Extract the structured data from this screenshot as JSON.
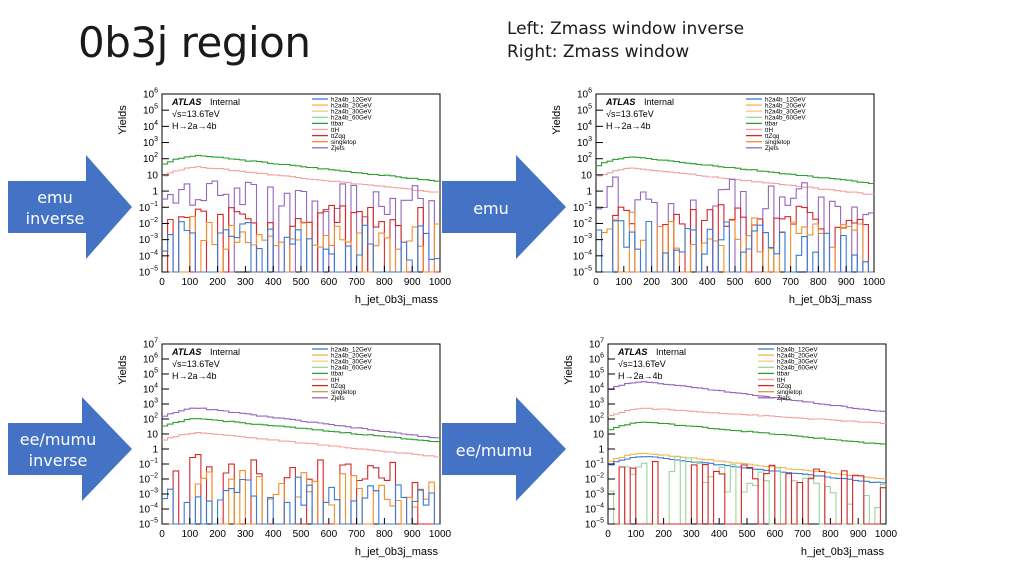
{
  "slide": {
    "title": "0b3j region",
    "note_line1": "Left: Zmass window inverse",
    "note_line2": "Right: Zmass window"
  },
  "arrows": [
    {
      "line1": "emu",
      "line2": "inverse",
      "color": "#4472c4"
    },
    {
      "line1": "emu",
      "line2": "",
      "color": "#4472c4"
    },
    {
      "line1": "ee/mumu",
      "line2": "inverse",
      "color": "#4472c4"
    },
    {
      "line1": "ee/mumu",
      "line2": "",
      "color": "#4472c4"
    }
  ],
  "legend_entries": [
    {
      "name": "h2a4b_12GeV",
      "color": "#3a7bd5"
    },
    {
      "name": "h2a4b_20GeV",
      "color": "#f2b24c"
    },
    {
      "name": "h2a4b_30GeV",
      "color": "#f6c98a"
    },
    {
      "name": "h2a4b_60GeV",
      "color": "#9ad59a"
    },
    {
      "name": "ttbar",
      "color": "#2ca02c"
    },
    {
      "name": "ttH",
      "color": "#f4a0a0"
    },
    {
      "name": "ttZqq",
      "color": "#d62728"
    },
    {
      "name": "singletop",
      "color": "#f28e2b"
    },
    {
      "name": "Zjets",
      "color": "#9467bd"
    }
  ],
  "chart_data": [
    {
      "type": "line",
      "panel": "emu inverse",
      "atlas": "ATLAS",
      "atlas_tag": "Internal",
      "energy": "√s=13.6TeV",
      "process": "H→2a→4b",
      "xlabel": "h_jet_0b3j_mass",
      "ylabel": "Yields",
      "log_y": true,
      "xlim": [
        0,
        1000
      ],
      "ylim": [
        1e-05,
        1000000.0
      ],
      "xticks": [
        "0",
        "100",
        "200",
        "300",
        "400",
        "500",
        "600",
        "700",
        "800",
        "900",
        "1000"
      ],
      "yticks": [
        {
          "b": "10",
          "e": "6",
          "exp": 6
        },
        {
          "b": "10",
          "e": "5",
          "exp": 5
        },
        {
          "b": "10",
          "e": "4",
          "exp": 4
        },
        {
          "b": "10",
          "e": "3",
          "exp": 3
        },
        {
          "b": "10",
          "e": "2",
          "exp": 2
        },
        {
          "b": "10",
          "e": "",
          "exp": 1
        },
        {
          "b": "1",
          "e": "",
          "exp": 0
        },
        {
          "b": "10",
          "e": "−1",
          "exp": -1
        },
        {
          "b": "10",
          "e": "−2",
          "exp": -2
        },
        {
          "b": "10",
          "e": "−3",
          "exp": -3
        },
        {
          "b": "10",
          "e": "−4",
          "exp": -4
        },
        {
          "b": "10",
          "e": "−5",
          "exp": -5
        }
      ],
      "series": [
        {
          "name": "ttbar",
          "color": "#2ca02c",
          "peak": 150,
          "end": 4,
          "kind": "smooth"
        },
        {
          "name": "ttH",
          "color": "#f4a0a0",
          "peak": 30,
          "end": 0.8,
          "kind": "smooth"
        },
        {
          "name": "Zjets",
          "color": "#9467bd",
          "peak": 0.5,
          "end": 0.2,
          "kind": "noisy",
          "low": 1e-05
        },
        {
          "name": "ttZqq",
          "color": "#d62728",
          "peak": 0.02,
          "end": 0.01,
          "kind": "spiky"
        },
        {
          "name": "singletop",
          "color": "#f28e2b",
          "peak": 0.003,
          "end": 0.001,
          "kind": "noisy",
          "low": 1e-05
        },
        {
          "name": "h2a4b_12GeV",
          "color": "#3a7bd5",
          "peak": 0.002,
          "end": 0.0005,
          "kind": "noisy",
          "low": 1e-05
        }
      ]
    },
    {
      "type": "line",
      "panel": "emu",
      "atlas": "ATLAS",
      "atlas_tag": "Internal",
      "energy": "√s=13.6TeV",
      "process": "H→2a→4b",
      "xlabel": "h_jet_0b3j_mass",
      "ylabel": "Yields",
      "log_y": true,
      "xlim": [
        0,
        1000
      ],
      "ylim": [
        1e-05,
        1000000.0
      ],
      "xticks": [
        "0",
        "100",
        "200",
        "300",
        "400",
        "500",
        "600",
        "700",
        "800",
        "900",
        "1000"
      ],
      "yticks": [
        {
          "b": "10",
          "e": "6",
          "exp": 6
        },
        {
          "b": "10",
          "e": "5",
          "exp": 5
        },
        {
          "b": "10",
          "e": "4",
          "exp": 4
        },
        {
          "b": "10",
          "e": "3",
          "exp": 3
        },
        {
          "b": "10",
          "e": "2",
          "exp": 2
        },
        {
          "b": "10",
          "e": "",
          "exp": 1
        },
        {
          "b": "1",
          "e": "",
          "exp": 0
        },
        {
          "b": "10",
          "e": "−1",
          "exp": -1
        },
        {
          "b": "10",
          "e": "−2",
          "exp": -2
        },
        {
          "b": "10",
          "e": "−3",
          "exp": -3
        },
        {
          "b": "10",
          "e": "−4",
          "exp": -4
        },
        {
          "b": "10",
          "e": "−5",
          "exp": -5
        }
      ],
      "series": [
        {
          "name": "ttbar",
          "color": "#2ca02c",
          "peak": 120,
          "end": 3,
          "kind": "smooth"
        },
        {
          "name": "ttH",
          "color": "#f4a0a0",
          "peak": 25,
          "end": 0.6,
          "kind": "smooth"
        },
        {
          "name": "Zjets",
          "color": "#9467bd",
          "peak": 1,
          "end": 0.3,
          "kind": "noisy",
          "low": 1e-05
        },
        {
          "name": "ttZqq",
          "color": "#d62728",
          "peak": 0.02,
          "end": 0.01,
          "kind": "spiky"
        },
        {
          "name": "singletop",
          "color": "#f28e2b",
          "peak": 0.004,
          "end": 0.001,
          "kind": "noisy",
          "low": 1e-05
        },
        {
          "name": "h2a4b_12GeV",
          "color": "#3a7bd5",
          "peak": 0.002,
          "end": 0.0005,
          "kind": "noisy",
          "low": 1e-05
        }
      ]
    },
    {
      "type": "line",
      "panel": "ee/mumu inverse",
      "atlas": "ATLAS",
      "atlas_tag": "Internal",
      "energy": "√s=13.6TeV",
      "process": "H→2a→4b",
      "xlabel": "h_jet_0b3j_mass",
      "ylabel": "Yields",
      "log_y": true,
      "xlim": [
        0,
        1000
      ],
      "ylim": [
        1e-05,
        10000000.0
      ],
      "xticks": [
        "0",
        "100",
        "200",
        "300",
        "400",
        "500",
        "600",
        "700",
        "800",
        "900",
        "1000"
      ],
      "yticks": [
        {
          "b": "10",
          "e": "7",
          "exp": 7
        },
        {
          "b": "10",
          "e": "6",
          "exp": 6
        },
        {
          "b": "10",
          "e": "5",
          "exp": 5
        },
        {
          "b": "10",
          "e": "4",
          "exp": 4
        },
        {
          "b": "10",
          "e": "3",
          "exp": 3
        },
        {
          "b": "10",
          "e": "2",
          "exp": 2
        },
        {
          "b": "10",
          "e": "",
          "exp": 1
        },
        {
          "b": "1",
          "e": "",
          "exp": 0
        },
        {
          "b": "10",
          "e": "−1",
          "exp": -1
        },
        {
          "b": "10",
          "e": "−2",
          "exp": -2
        },
        {
          "b": "10",
          "e": "−3",
          "exp": -3
        },
        {
          "b": "10",
          "e": "−4",
          "exp": -4
        },
        {
          "b": "10",
          "e": "−5",
          "exp": -5
        }
      ],
      "series": [
        {
          "name": "Zjets",
          "color": "#9467bd",
          "peak": 500,
          "end": 5,
          "kind": "smooth"
        },
        {
          "name": "ttbar",
          "color": "#2ca02c",
          "peak": 100,
          "end": 3,
          "kind": "smooth"
        },
        {
          "name": "ttH",
          "color": "#f4a0a0",
          "peak": 12,
          "end": 0.3,
          "kind": "smooth"
        },
        {
          "name": "ttZqq",
          "color": "#d62728",
          "peak": 0.05,
          "end": 0.01,
          "kind": "spiky"
        },
        {
          "name": "singletop",
          "color": "#f28e2b",
          "peak": 0.005,
          "end": 0.001,
          "kind": "noisy",
          "low": 1e-05
        },
        {
          "name": "h2a4b_12GeV",
          "color": "#3a7bd5",
          "peak": 0.002,
          "end": 0.0005,
          "kind": "noisy",
          "low": 1e-05
        }
      ]
    },
    {
      "type": "line",
      "panel": "ee/mumu",
      "atlas": "ATLAS",
      "atlas_tag": "Internal",
      "energy": "√s=13.6TeV",
      "process": "H→2a→4b",
      "xlabel": "h_jet_0b3j_mass",
      "ylabel": "Yields",
      "log_y": true,
      "xlim": [
        0,
        1000
      ],
      "ylim": [
        1e-05,
        10000000.0
      ],
      "xticks": [
        "0",
        "100",
        "200",
        "300",
        "400",
        "500",
        "600",
        "700",
        "800",
        "900",
        "1000"
      ],
      "yticks": [
        {
          "b": "10",
          "e": "7",
          "exp": 7
        },
        {
          "b": "10",
          "e": "6",
          "exp": 6
        },
        {
          "b": "10",
          "e": "5",
          "exp": 5
        },
        {
          "b": "10",
          "e": "4",
          "exp": 4
        },
        {
          "b": "10",
          "e": "3",
          "exp": 3
        },
        {
          "b": "10",
          "e": "2",
          "exp": 2
        },
        {
          "b": "10",
          "e": "",
          "exp": 1
        },
        {
          "b": "1",
          "e": "",
          "exp": 0
        },
        {
          "b": "10",
          "e": "−1",
          "exp": -1
        },
        {
          "b": "10",
          "e": "−2",
          "exp": -2
        },
        {
          "b": "10",
          "e": "−3",
          "exp": -3
        },
        {
          "b": "10",
          "e": "−4",
          "exp": -4
        },
        {
          "b": "10",
          "e": "−5",
          "exp": -5
        }
      ],
      "series": [
        {
          "name": "Zjets",
          "color": "#9467bd",
          "peak": 30000,
          "end": 300,
          "kind": "smooth"
        },
        {
          "name": "ttH",
          "color": "#f4a0a0",
          "peak": 500,
          "end": 50,
          "kind": "smooth"
        },
        {
          "name": "ttbar",
          "color": "#2ca02c",
          "peak": 60,
          "end": 2,
          "kind": "smooth"
        },
        {
          "name": "h2a4b_20GeV",
          "color": "#f2b24c",
          "peak": 0.5,
          "end": 0.01,
          "kind": "smooth"
        },
        {
          "name": "h2a4b_12GeV",
          "color": "#3a7bd5",
          "peak": 0.3,
          "end": 0.005,
          "kind": "smooth"
        },
        {
          "name": "h2a4b_60GeV",
          "color": "#9ad59a",
          "peak": 0.05,
          "end": 0.001,
          "kind": "noisy",
          "low": 1e-05
        },
        {
          "name": "ttZqq",
          "color": "#d62728",
          "peak": 0.02,
          "end": 0.005,
          "kind": "spiky"
        }
      ]
    }
  ]
}
